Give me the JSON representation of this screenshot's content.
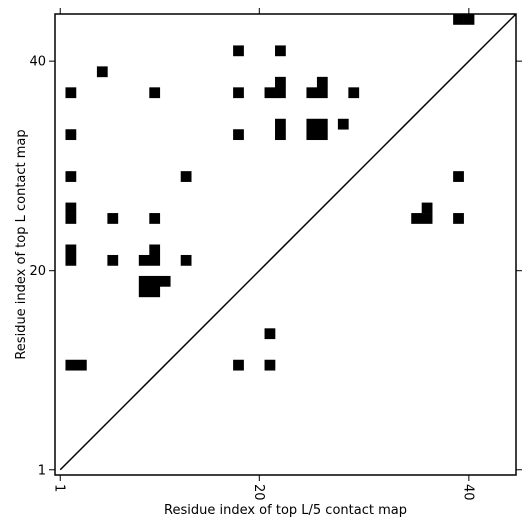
{
  "chart_data": {
    "type": "heatmap",
    "xlabel": "Residue index of top L/5 contact map",
    "ylabel": "Residue index of top L contact map",
    "xlim": [
      0.5,
      44.5
    ],
    "ylim": [
      0.5,
      44.5
    ],
    "xticks": [
      1,
      20,
      40
    ],
    "yticks": [
      1,
      20,
      40
    ],
    "diagonal": true,
    "colors": {
      "cell": "#000000",
      "frame": "#000000",
      "background": "#ffffff"
    },
    "cells_upper_left": [
      [
        2,
        37
      ],
      [
        2,
        33
      ],
      [
        2,
        29
      ],
      [
        2,
        26
      ],
      [
        2,
        25
      ],
      [
        2,
        22
      ],
      [
        2,
        21
      ],
      [
        5,
        39
      ],
      [
        6,
        25
      ],
      [
        6,
        21
      ],
      [
        9,
        21
      ],
      [
        9,
        19
      ],
      [
        9,
        18
      ],
      [
        10,
        37
      ],
      [
        10,
        25
      ],
      [
        10,
        22
      ],
      [
        10,
        21
      ],
      [
        10,
        19
      ],
      [
        10,
        18
      ],
      [
        11,
        19
      ],
      [
        13,
        29
      ],
      [
        13,
        21
      ],
      [
        18,
        41
      ],
      [
        18,
        37
      ],
      [
        18,
        33
      ],
      [
        21,
        37
      ],
      [
        22,
        41
      ],
      [
        22,
        38
      ],
      [
        22,
        37
      ],
      [
        22,
        34
      ],
      [
        22,
        33
      ],
      [
        25,
        37
      ],
      [
        25,
        34
      ],
      [
        25,
        33
      ],
      [
        26,
        38
      ],
      [
        26,
        37
      ],
      [
        26,
        34
      ],
      [
        26,
        33
      ],
      [
        28,
        34
      ],
      [
        29,
        37
      ],
      [
        35,
        25
      ],
      [
        36,
        26
      ],
      [
        36,
        25
      ],
      [
        39,
        29
      ],
      [
        39,
        25
      ],
      [
        39,
        44
      ],
      [
        40,
        44
      ]
    ],
    "cells_lower_right": [
      [
        2,
        11
      ],
      [
        3,
        11
      ],
      [
        18,
        11
      ],
      [
        21,
        14
      ],
      [
        21,
        11
      ]
    ]
  }
}
